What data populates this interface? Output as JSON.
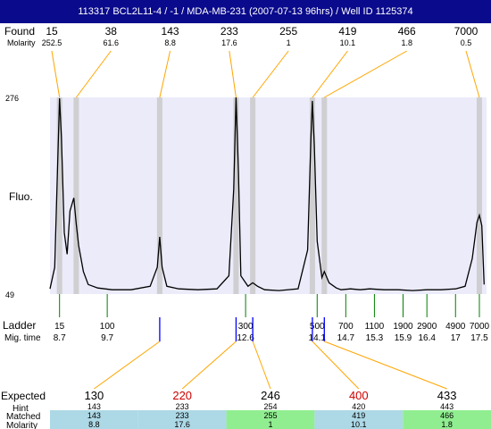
{
  "title": "113317 BCL2L11-4 / -1 / MDA-MB-231 (2007-07-13 96hrs) / Well ID 1125374",
  "labels": {
    "found": "Found",
    "molarity": "Molarity",
    "fluo": "Fluo.",
    "ladder": "Ladder",
    "mig_time": "Mig. time",
    "expected": "Expected",
    "hint": "Hint",
    "matched": "Matched",
    "molarity_bottom": "Molarity"
  },
  "chart_data": {
    "type": "line",
    "ylabel": "Fluo.",
    "ylim": [
      49,
      276
    ],
    "y_ticks": [
      276,
      49
    ],
    "found": {
      "sizes": [
        "15",
        "38",
        "143",
        "233",
        "255",
        "419",
        "466",
        "7000"
      ],
      "molarity": [
        "252.5",
        "61.6",
        "8.8",
        "17.6",
        "1",
        "10.1",
        "1.8",
        "0.5"
      ],
      "peak_mig_time": [
        8.7,
        9.05,
        10.8,
        12.4,
        12.75,
        14.0,
        14.25,
        17.5
      ]
    },
    "ladder": {
      "sizes": [
        "15",
        "100",
        "300",
        "500",
        "700",
        "1100",
        "1900",
        "2900",
        "4900",
        "7000"
      ],
      "mig_time": [
        "8.7",
        "9.7",
        "12.6",
        "14.1",
        "14.7",
        "15.3",
        "15.9",
        "16.4",
        "17",
        "17.5"
      ]
    },
    "expected": {
      "values": [
        "130",
        "220",
        "246",
        "400",
        "433"
      ],
      "highlight": [
        false,
        true,
        false,
        true,
        false
      ],
      "hint": [
        "143",
        "233",
        "254",
        "420",
        "443"
      ],
      "matched": [
        "143",
        "233",
        "255",
        "419",
        "466"
      ],
      "matched_molarity": [
        "8.8",
        "17.6",
        "1",
        "10.1",
        "1.8"
      ],
      "row_colors": [
        "#add8e6",
        "#add8e6",
        "#90ee90",
        "#add8e6",
        "#90ee90"
      ]
    },
    "trace": {
      "x": [
        8.5,
        8.6,
        8.66,
        8.7,
        8.74,
        8.8,
        8.86,
        8.92,
        9.0,
        9.05,
        9.1,
        9.2,
        9.3,
        9.5,
        9.8,
        10.2,
        10.6,
        10.75,
        10.8,
        10.85,
        10.95,
        11.2,
        11.6,
        12.0,
        12.25,
        12.35,
        12.4,
        12.45,
        12.5,
        12.65,
        12.75,
        12.85,
        13.0,
        13.3,
        13.7,
        13.9,
        13.97,
        14.0,
        14.04,
        14.1,
        14.2,
        14.25,
        14.35,
        14.5,
        14.6,
        14.8,
        15.0,
        15.2,
        15.5,
        15.8,
        16.1,
        16.4,
        16.7,
        17.0,
        17.2,
        17.35,
        17.45,
        17.5,
        17.55,
        17.6
      ],
      "y": [
        55,
        80,
        200,
        275,
        230,
        120,
        95,
        145,
        160,
        130,
        105,
        75,
        60,
        56,
        54,
        54,
        58,
        80,
        115,
        80,
        58,
        55,
        54,
        55,
        70,
        170,
        276,
        190,
        70,
        58,
        62,
        58,
        54,
        53,
        55,
        100,
        230,
        272,
        220,
        110,
        68,
        75,
        62,
        56,
        54,
        55,
        54,
        55,
        54,
        54,
        53,
        54,
        54,
        55,
        58,
        90,
        132,
        140,
        128,
        60
      ]
    },
    "colors": {
      "trace": "#000000",
      "plot_bg": "#ebebfa",
      "peak_band": "#c8c8c8",
      "connector": "#ffa500",
      "ladder_tick": "#008000",
      "matched_tick": "#0000ff",
      "expected_highlight": "#cc0000"
    }
  }
}
